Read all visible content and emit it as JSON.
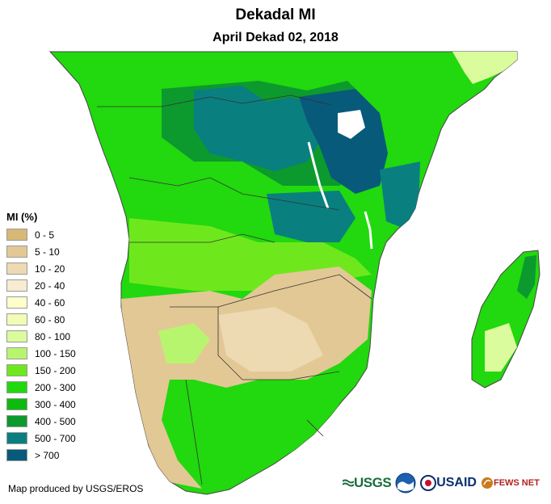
{
  "header": {
    "title": "Dekadal MI",
    "subtitle": "April Dekad 02, 2018"
  },
  "legend": {
    "title": "MI (%)",
    "classes": [
      {
        "label": "0 - 5",
        "color": "#d8b877"
      },
      {
        "label": "5 - 10",
        "color": "#e2c895"
      },
      {
        "label": "10 - 20",
        "color": "#edd9b2"
      },
      {
        "label": "20 - 40",
        "color": "#f7ebd2"
      },
      {
        "label": "40 - 60",
        "color": "#ffffcc"
      },
      {
        "label": "60 - 80",
        "color": "#f2fcb6"
      },
      {
        "label": "80 - 100",
        "color": "#dafc9c"
      },
      {
        "label": "100 - 150",
        "color": "#b8f56e"
      },
      {
        "label": "150 - 200",
        "color": "#6ee81c"
      },
      {
        "label": "200 - 300",
        "color": "#22d80e"
      },
      {
        "label": "300 - 400",
        "color": "#0fba0f"
      },
      {
        "label": "400 - 500",
        "color": "#0c9a2e"
      },
      {
        "label": "500 - 700",
        "color": "#0a7f80"
      },
      {
        "label": "> 700",
        "color": "#075a7a"
      }
    ]
  },
  "footer": {
    "credit": "Map produced by USGS/EROS"
  },
  "logos": {
    "usgs": "USGS",
    "noaa_icon": "noaa-emblem",
    "usaid": "USAID",
    "fews": "FEWS NET"
  }
}
